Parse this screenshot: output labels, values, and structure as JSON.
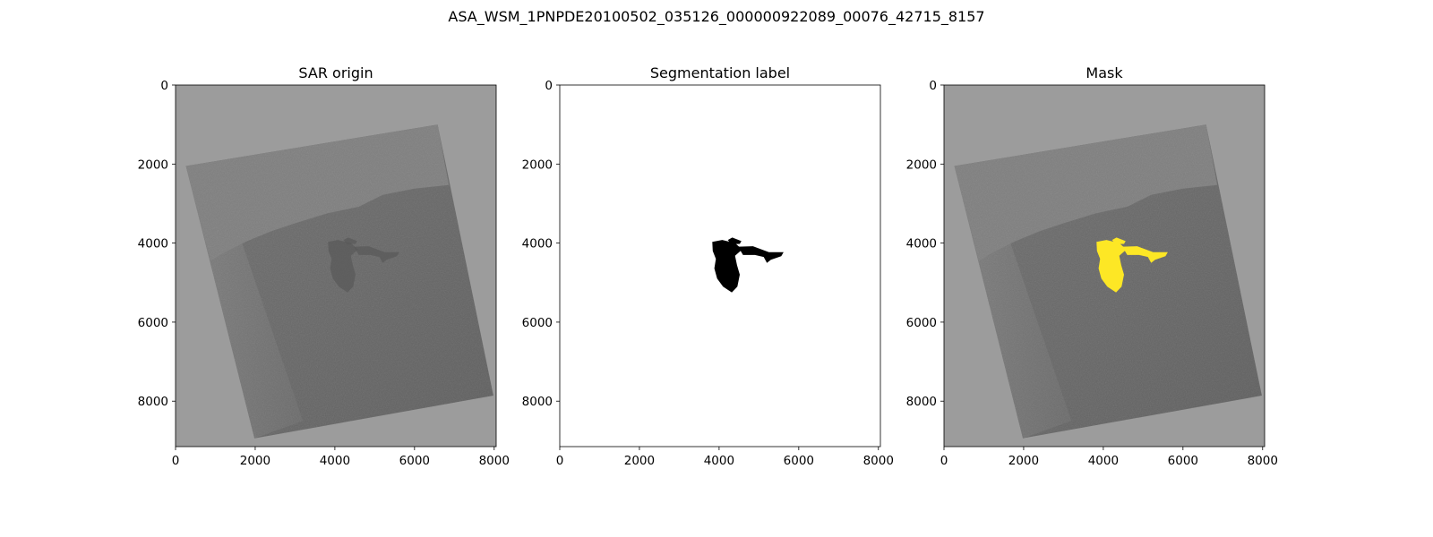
{
  "figure": {
    "suptitle": "ASA_WSM_1PNPDE20100502_035126_000000922089_00076_42715_8157"
  },
  "panels": [
    {
      "title": "SAR origin",
      "kind": "sar",
      "xticks": [
        "0",
        "2000",
        "4000",
        "6000",
        "8000"
      ],
      "yticks": [
        "0",
        "2000",
        "4000",
        "6000",
        "8000"
      ]
    },
    {
      "title": "Segmentation label",
      "kind": "label",
      "xticks": [
        "0",
        "2000",
        "4000",
        "6000",
        "8000"
      ],
      "yticks": [
        "0",
        "2000",
        "4000",
        "6000",
        "8000"
      ]
    },
    {
      "title": "Mask",
      "kind": "mask",
      "xticks": [
        "0",
        "2000",
        "4000",
        "6000",
        "8000"
      ],
      "yticks": [
        "0",
        "2000",
        "4000",
        "6000",
        "8000"
      ]
    }
  ],
  "axes": {
    "x_range": [
      0,
      8050
    ],
    "y_range": [
      0,
      9150
    ],
    "tick_values": [
      0,
      2000,
      4000,
      6000,
      8000
    ]
  },
  "colors": {
    "background_gray": "#9c9c9c",
    "sar_land": "#7e7e7e",
    "sar_sea": "#6a6a6a",
    "label_bg": "#ffffff",
    "label_fg": "#000000",
    "mask_overlay": "#fde725"
  }
}
